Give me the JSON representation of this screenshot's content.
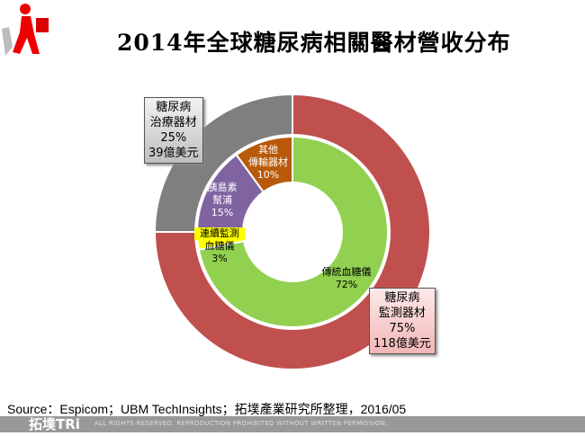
{
  "title": "2014年全球糖尿病相關醫材營收分布",
  "chart_data": {
    "type": "pie",
    "subtype": "nested-donut",
    "title": "2014年全球糖尿病相關醫材營收分布",
    "outer": [
      {
        "name": "糖尿病監測器材",
        "pct_label": "75%",
        "value": 75,
        "amount": "118億美元",
        "color": "#c0504d"
      },
      {
        "name": "糖尿病治療器材",
        "pct_label": "25%",
        "value": 25,
        "amount": "39億美元",
        "color": "#7f7f7f"
      }
    ],
    "inner": [
      {
        "name": "傳統血糖儀",
        "pct_label": "72%",
        "value": 72,
        "color": "#92d050"
      },
      {
        "name": "連續監測血糖儀",
        "pct_label": "3%",
        "value": 3,
        "color": "#ffff00"
      },
      {
        "name": "胰島素幫浦",
        "pct_label": "15%",
        "value": 15,
        "color": "#8064a2"
      },
      {
        "name": "其他傳輸器材",
        "pct_label": "10%",
        "value": 10,
        "color": "#b85a0a"
      }
    ]
  },
  "labels": {
    "monitor": {
      "l1": "糖尿病",
      "l2": "監測器材",
      "pct": "75%",
      "amt": "118億美元"
    },
    "treat": {
      "l1": "糖尿病",
      "l2": "治療器材",
      "pct": "25%",
      "amt": "39億美元"
    },
    "bgm": {
      "l1": "傳統血糖儀",
      "pct": "72%"
    },
    "cgm": {
      "l1": "連續監測",
      "l2": "血糖儀",
      "pct": "3%"
    },
    "pump": {
      "l1": "胰島素",
      "l2": "幫浦",
      "pct": "15%"
    },
    "other": {
      "l1": "其他",
      "l2": "傳輸器材",
      "pct": "10%"
    }
  },
  "source": "Source：Espicom；UBM  TechInsights；拓墣產業研究所整理，2016/05",
  "footer": {
    "brand": "拓墣TRi",
    "rights": "ALL RIGHTS RESERVED. REPRODUCTION PROHIBITED WITHOUT WRITTEN PERMISSION."
  }
}
